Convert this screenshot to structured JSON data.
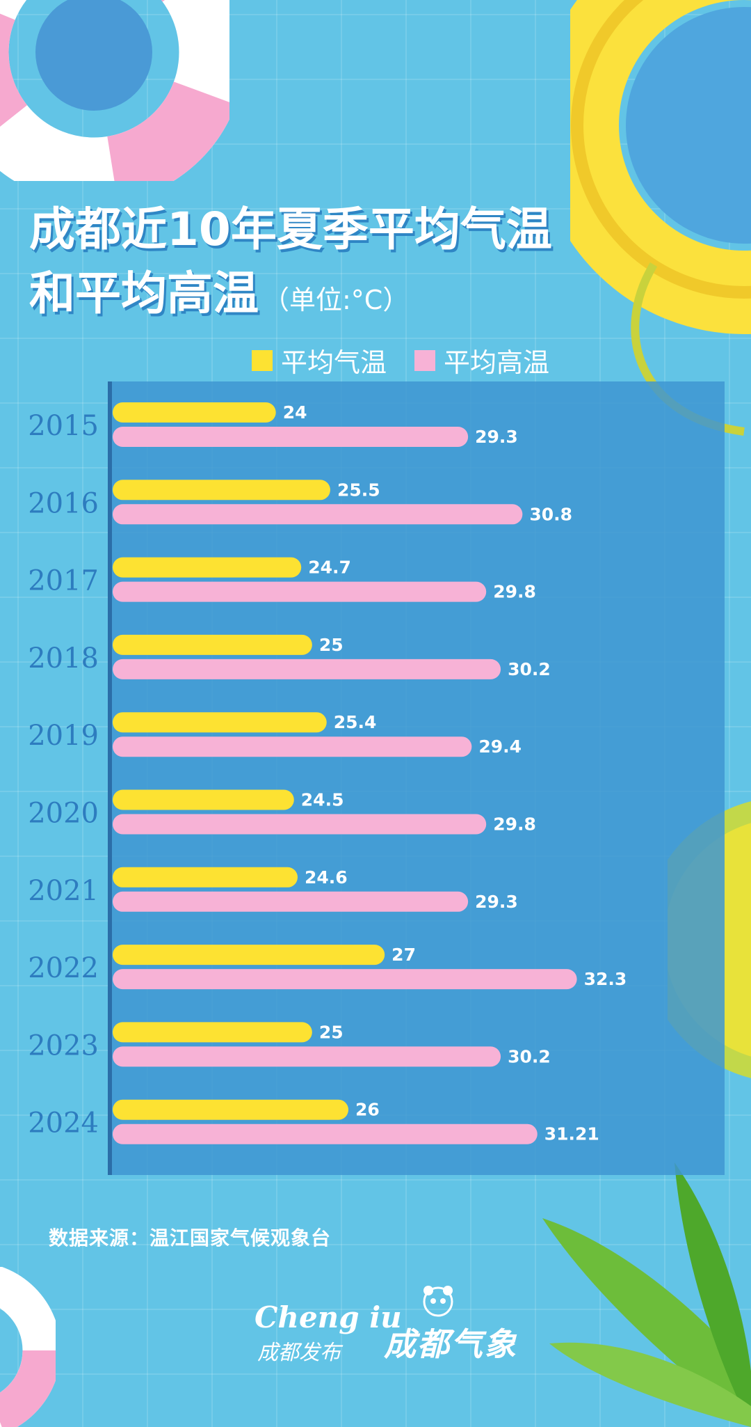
{
  "title_line1": "成都近10年夏季平均气温",
  "title_line2": "和平均高温",
  "unit": "（单位:°C）",
  "source": "数据来源：温江国家气候观象台",
  "logos": {
    "latin": "Cheng iu",
    "sub": "成都发布",
    "cn": "成都气象"
  },
  "colors": {
    "avg": "#fde232",
    "high": "#f7b2d6",
    "plot_bg": "#3f97d1",
    "axis": "#2b6ea8",
    "year_text": "#2d7cbf",
    "label_text": "#ffffff"
  },
  "chart_data": {
    "type": "bar",
    "orientation": "horizontal",
    "title": "成都近10年夏季平均气温和平均高温（单位:°C）",
    "categories": [
      "2015",
      "2016",
      "2017",
      "2018",
      "2019",
      "2020",
      "2021",
      "2022",
      "2023",
      "2024"
    ],
    "series": [
      {
        "name": "平均气温",
        "values": [
          24,
          25.5,
          24.7,
          25,
          25.4,
          24.5,
          24.6,
          27,
          25,
          26
        ],
        "labels": [
          "24",
          "25.5",
          "24.7",
          "25",
          "25.4",
          "24.5",
          "24.6",
          "27",
          "25",
          "26"
        ]
      },
      {
        "name": "平均高温",
        "values": [
          29.3,
          30.8,
          29.8,
          30.2,
          29.4,
          29.8,
          29.3,
          32.3,
          30.2,
          31.21
        ],
        "labels": [
          "29.3",
          "30.8",
          "29.8",
          "30.2",
          "29.4",
          "29.8",
          "29.3",
          "32.3",
          "30.2",
          "31.21"
        ]
      }
    ],
    "xlim": [
      19.5,
      34.8
    ],
    "legend": "top",
    "grid": false
  }
}
